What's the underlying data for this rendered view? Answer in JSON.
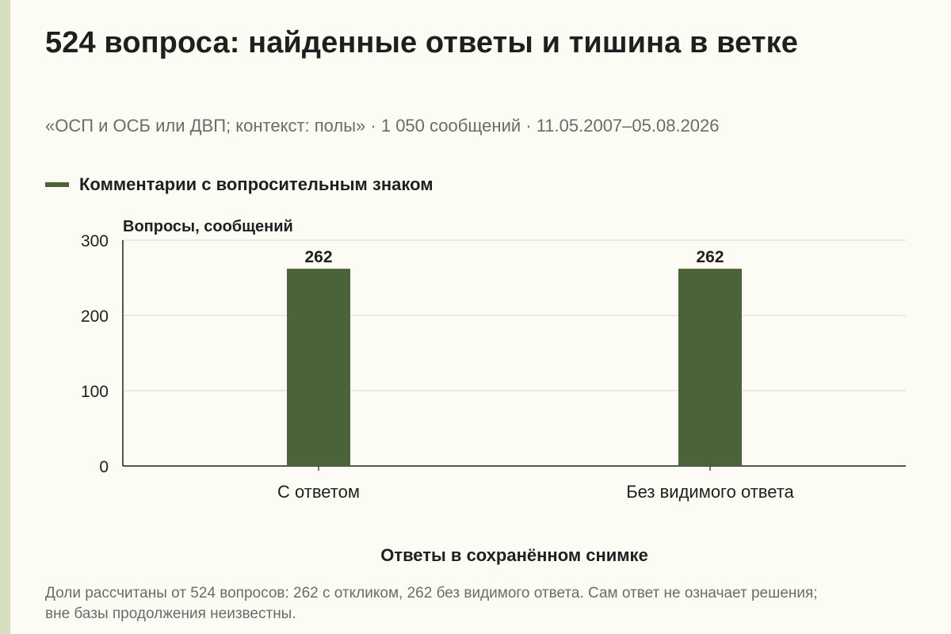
{
  "title": "524 вопроса: найденные ответы и тишина в ветке",
  "subtitle": "«ОСП и ОСБ или ДВП; контекст: полы» · 1 050 сообщений · 11.05.2007–05.08.2026",
  "legend": {
    "label": "Комментарии с вопросительным знаком",
    "color": "#4a6339"
  },
  "note": "Доли рассчитаны от 524 вопросов: 262 с откликом, 262 без видимого ответа. Сам ответ не означает решения; вне базы продолжения неизвестны.",
  "chart_data": {
    "type": "bar",
    "categories": [
      "С ответом",
      "Без видимого ответа"
    ],
    "series": [
      {
        "name": "Комментарии с вопросительным знаком",
        "values": [
          262,
          262
        ],
        "color": "#4a6339"
      }
    ],
    "data_labels": [
      "262",
      "262"
    ],
    "ylabel": "Вопросы, сообщений",
    "xlabel": "Ответы в сохранённом снимке",
    "ylim": [
      0,
      300
    ],
    "yticks": [
      0,
      100,
      200,
      300
    ],
    "grid": true,
    "legend_position": "top-left"
  }
}
